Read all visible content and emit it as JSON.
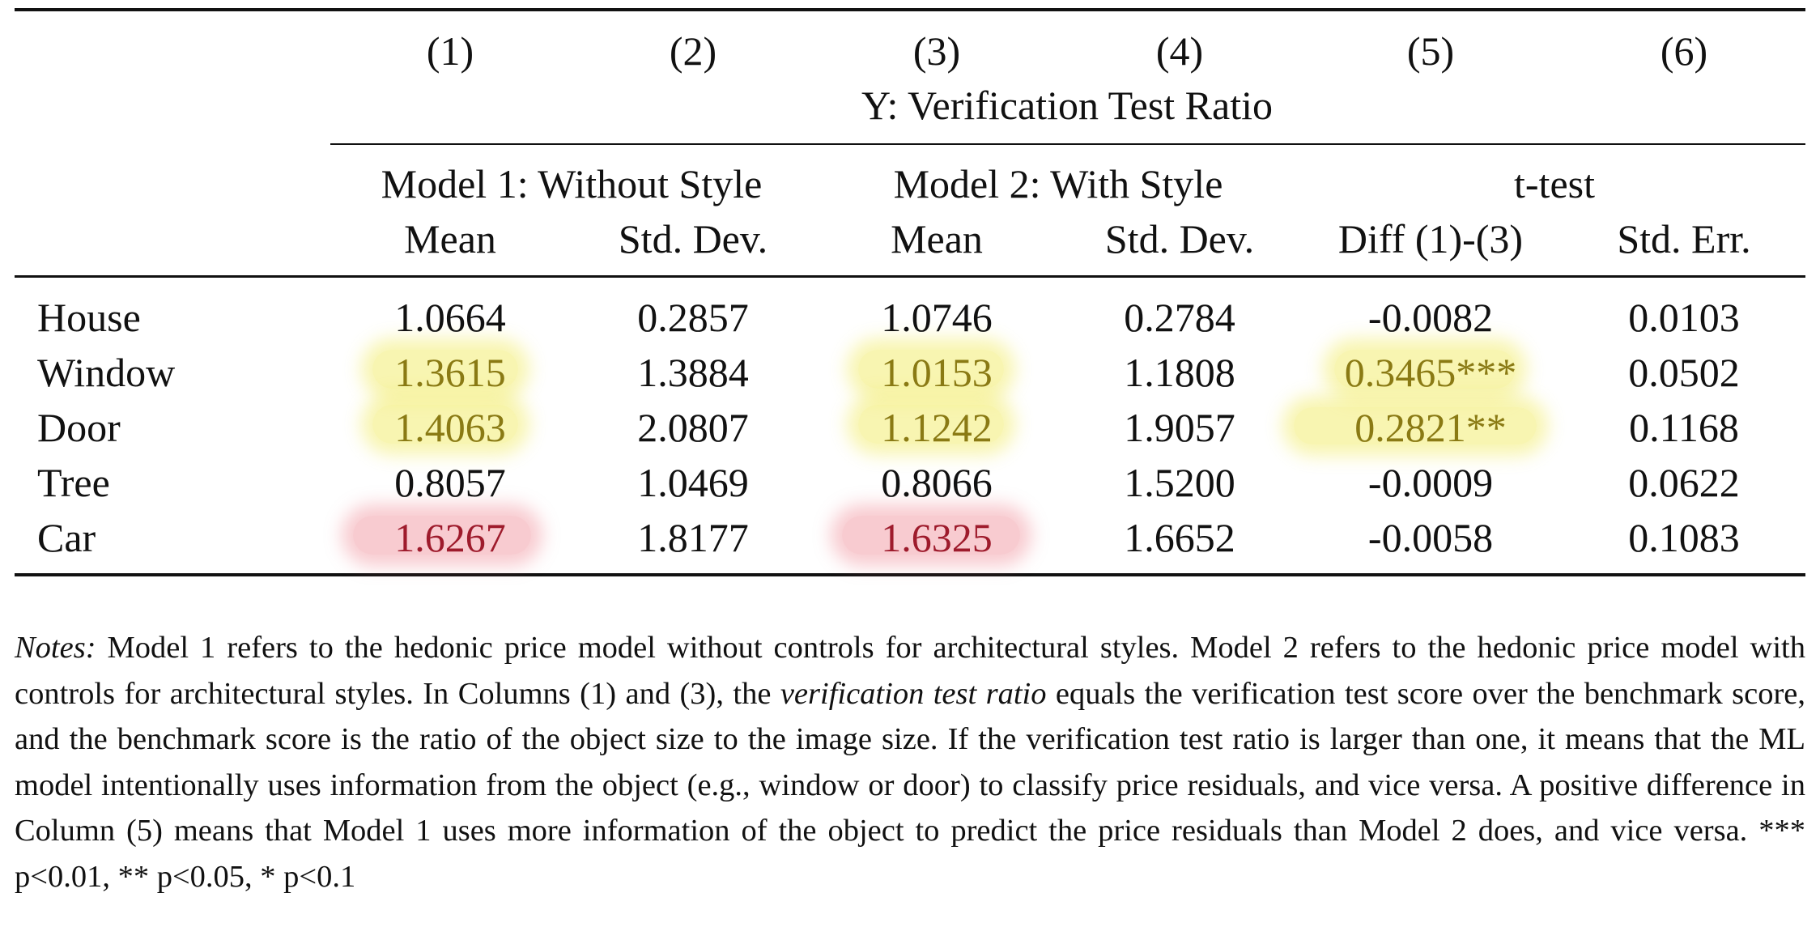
{
  "column_numbers": [
    "(1)",
    "(2)",
    "(3)",
    "(4)",
    "(5)",
    "(6)"
  ],
  "dependent_var": "Y: Verification Test Ratio",
  "groups": {
    "model1": "Model 1: Without Style",
    "model2": "Model 2: With Style",
    "ttest": "t-test"
  },
  "subheaders": [
    "Mean",
    "Std. Dev.",
    "Mean",
    "Std. Dev.",
    "Diff (1)-(3)",
    "Std. Err."
  ],
  "rows": [
    {
      "label": "House",
      "values": [
        "1.0664",
        "0.2857",
        "1.0746",
        "0.2784",
        "-0.0082",
        "0.0103"
      ]
    },
    {
      "label": "Window",
      "values": [
        "1.3615",
        "1.3884",
        "1.0153",
        "1.1808",
        "0.3465***",
        "0.0502"
      ]
    },
    {
      "label": "Door",
      "values": [
        "1.4063",
        "2.0807",
        "1.1242",
        "1.9057",
        "0.2821**",
        "0.1168"
      ]
    },
    {
      "label": "Tree",
      "values": [
        "0.8057",
        "1.0469",
        "0.8066",
        "1.5200",
        "-0.0009",
        "0.0622"
      ]
    },
    {
      "label": "Car",
      "values": [
        "1.6267",
        "1.8177",
        "1.6325",
        "1.6652",
        "-0.0058",
        "0.1083"
      ]
    }
  ],
  "highlight_colors": {
    "yellow": "#eee846",
    "red": "#ec6e7d",
    "yellow_text": "#8a7a14",
    "red_text": "#9e1b2c"
  },
  "notes": {
    "label": "Notes:",
    "part1": " Model 1 refers to the hedonic price model without controls for architectural styles.  Model 2 refers to the hedonic price model with controls for architectural styles.  In Columns (1) and (3), the ",
    "term": "verification test ratio",
    "part2": " equals the verification test score over the benchmark score, and the benchmark score is the ratio of the object size to the image size. If the verification test ratio is larger than one, it means that the ML model intentionally uses information from the object (e.g., window or door) to classify price residuals, and vice versa. A positive difference in Column (5) means that Model 1 uses more information of the object to predict the price residuals than Model 2 does, and vice versa. *** p<0.01, ** p<0.05, * p<0.1"
  }
}
